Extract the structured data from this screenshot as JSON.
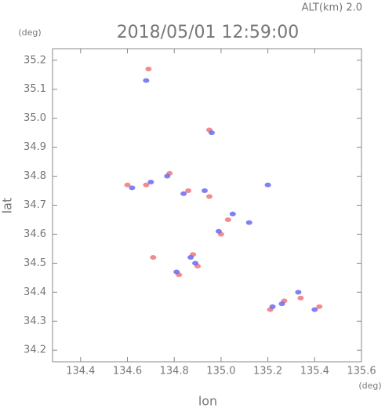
{
  "chart_data": {
    "type": "scatter",
    "header": "ALT(km) 2.0",
    "title": "2018/05/01 12:59:00",
    "ylabel": "lat",
    "ylabel_unit": "(deg)",
    "xlabel": "lon",
    "xlabel_unit": "(deg)",
    "xlim": [
      134.28,
      135.6
    ],
    "ylim": [
      34.16,
      35.24
    ],
    "xticks": [
      134.4,
      134.6,
      134.8,
      {
        "value": 135,
        "label": "135.0"
      },
      135.2,
      135.4,
      135.6
    ],
    "yticks": [
      34.2,
      34.3,
      34.4,
      34.5,
      34.6,
      34.7,
      34.8,
      34.9,
      {
        "value": 35,
        "label": "35.0"
      },
      35.1,
      35.2
    ],
    "series": [
      {
        "color": "#f07878",
        "x": [
          134.69,
          134.6,
          134.68,
          134.78,
          134.86,
          134.95,
          135.03,
          135.0,
          134.88,
          134.9,
          134.82,
          134.71,
          135.27,
          135.34,
          135.21,
          135.42,
          134.95
        ],
        "values": [
          35.17,
          34.77,
          34.77,
          34.81,
          34.75,
          34.73,
          34.65,
          34.6,
          34.53,
          34.49,
          34.46,
          34.52,
          34.37,
          34.38,
          34.34,
          34.35,
          34.96
        ]
      },
      {
        "color": "#6a6af0",
        "x": [
          134.68,
          134.62,
          134.7,
          134.77,
          134.84,
          134.93,
          135.05,
          134.99,
          134.87,
          134.89,
          134.81,
          135.2,
          135.12,
          135.26,
          135.33,
          135.22,
          135.4,
          134.96
        ],
        "values": [
          35.13,
          34.76,
          34.78,
          34.8,
          34.74,
          34.75,
          34.67,
          34.61,
          34.52,
          34.5,
          34.47,
          34.77,
          34.64,
          34.36,
          34.4,
          34.35,
          34.34,
          34.95
        ]
      }
    ]
  }
}
